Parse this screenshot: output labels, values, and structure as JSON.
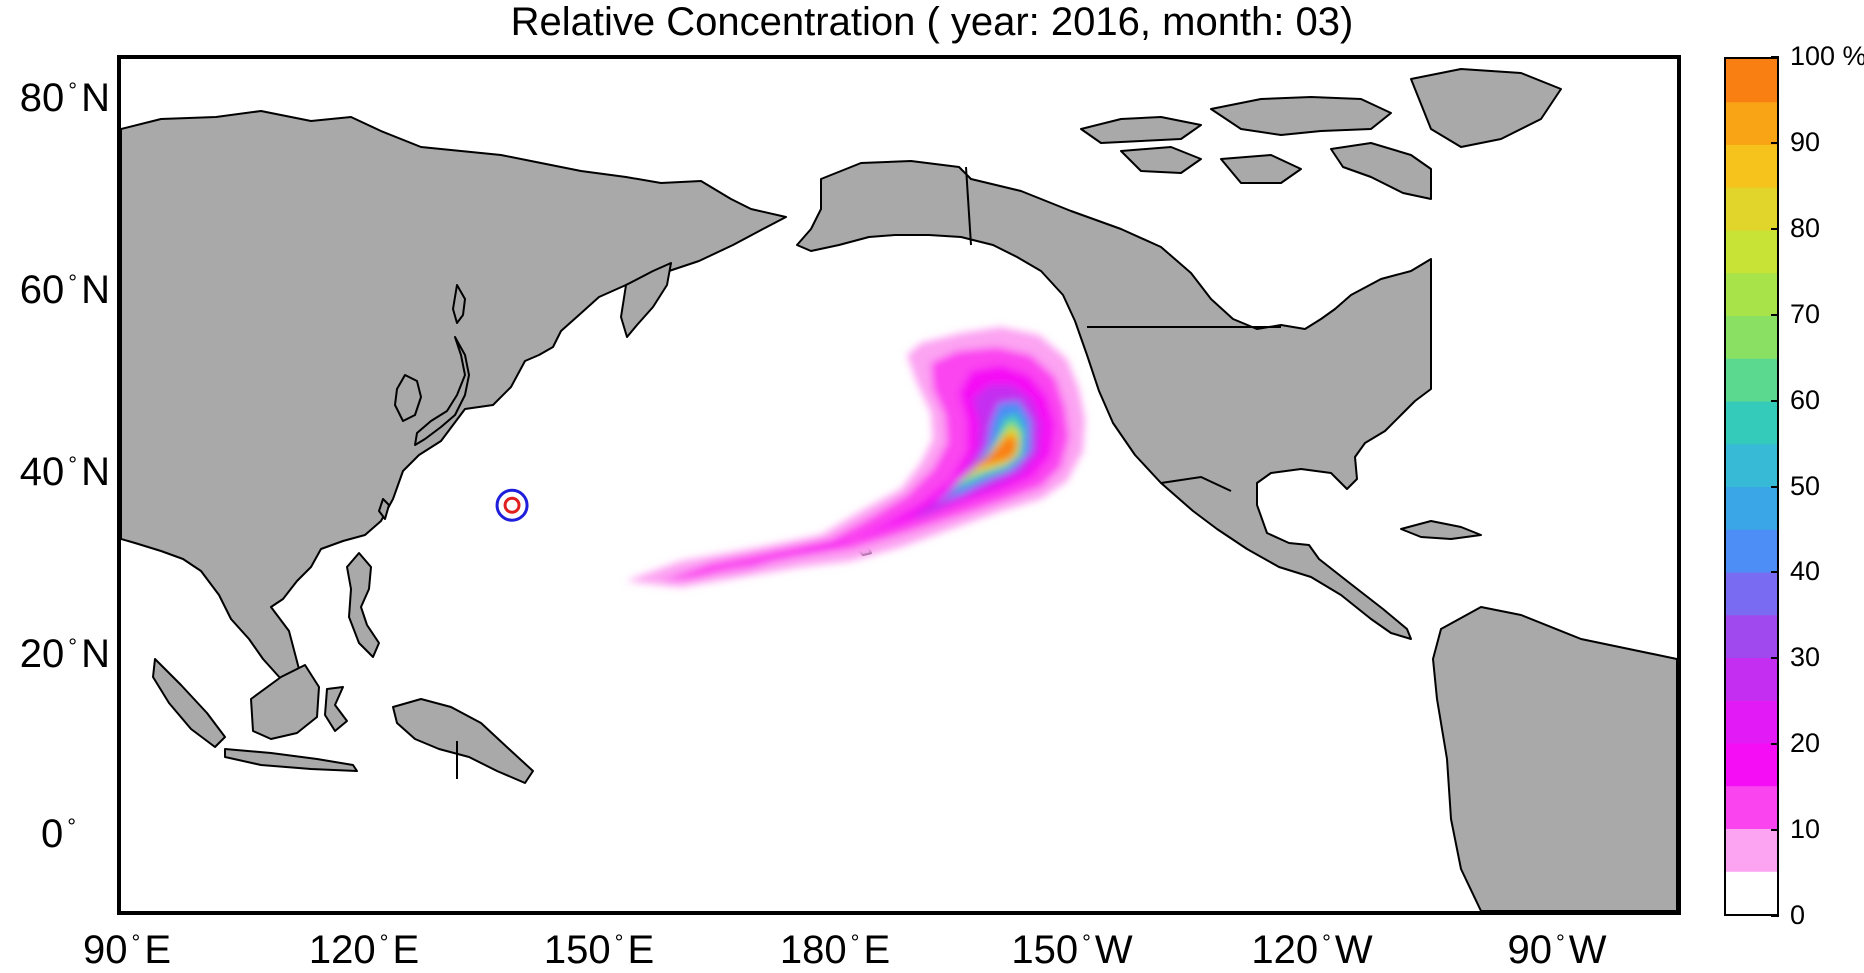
{
  "title": "Relative Concentration ( year: 2016, month: 03)",
  "map": {
    "land_color": "#a9a9a9",
    "ocean_color": "#ffffff",
    "coastline_color": "#000000",
    "lat_labels": [
      {
        "deg": "80",
        "hemi": "N"
      },
      {
        "deg": "60",
        "hemi": "N"
      },
      {
        "deg": "40",
        "hemi": "N"
      },
      {
        "deg": "20",
        "hemi": "N"
      },
      {
        "deg": "0",
        "hemi": ""
      }
    ],
    "lon_labels": [
      {
        "deg": "90",
        "hemi": "E"
      },
      {
        "deg": "120",
        "hemi": "E"
      },
      {
        "deg": "150",
        "hemi": "E"
      },
      {
        "deg": "180",
        "hemi": "E"
      },
      {
        "deg": "150",
        "hemi": "W"
      },
      {
        "deg": "120",
        "hemi": "W"
      },
      {
        "deg": "90",
        "hemi": "W"
      }
    ],
    "source_marker": {
      "lat": 37.4,
      "lon": 141.0,
      "outer_color": "#1f1fdb",
      "inner_color": "#e01f1f"
    }
  },
  "colorbar": {
    "unit": "%",
    "tick_labels": [
      "0",
      "10",
      "20",
      "30",
      "40",
      "50",
      "60",
      "70",
      "80",
      "90",
      "100 %"
    ],
    "colors": [
      "#ffffff",
      "#fca3f2",
      "#fa44f0",
      "#f50ef5",
      "#e21af5",
      "#c42ef0",
      "#a049ee",
      "#7a6cf2",
      "#4c8ef5",
      "#3aa6e8",
      "#36bad6",
      "#34cbbb",
      "#5ad98f",
      "#8ae063",
      "#a9e34a",
      "#c9e236",
      "#e1d42a",
      "#f5c31c",
      "#f8a414",
      "#fa7f12",
      "#f95418"
    ]
  }
}
